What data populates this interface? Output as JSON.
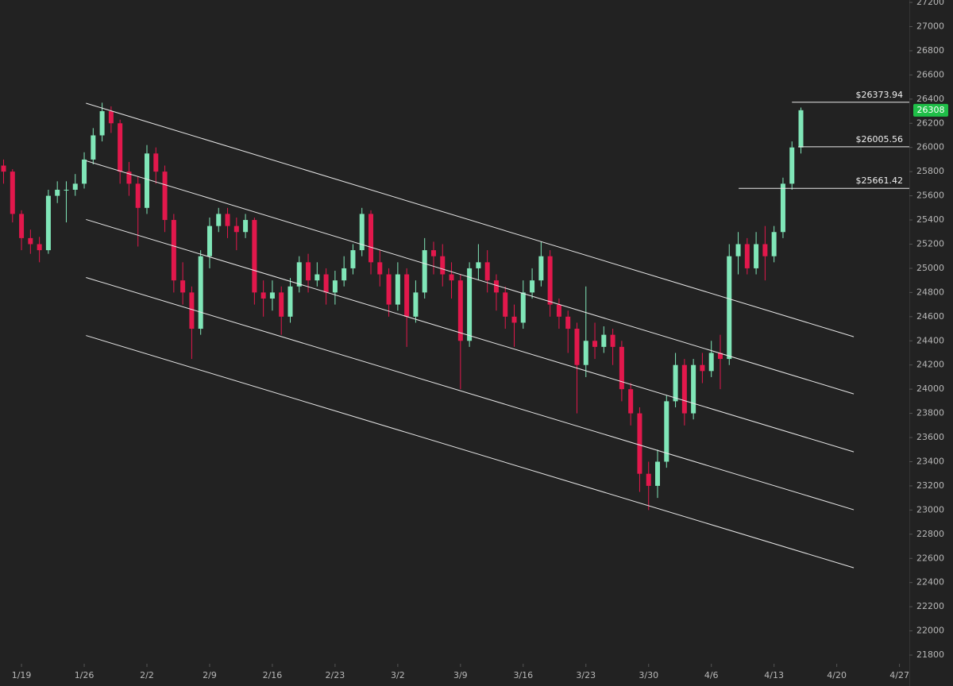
{
  "chart_data": {
    "type": "candlestick",
    "xlim": [
      16.6,
      118.1
    ],
    "ylim": [
      21728,
      27220
    ],
    "xticks": [
      {
        "value": 19,
        "label": "1/19"
      },
      {
        "value": 26,
        "label": "1/26"
      },
      {
        "value": 33,
        "label": "2/2"
      },
      {
        "value": 40,
        "label": "2/9"
      },
      {
        "value": 47,
        "label": "2/16"
      },
      {
        "value": 54,
        "label": "2/23"
      },
      {
        "value": 61,
        "label": "3/2"
      },
      {
        "value": 68,
        "label": "3/9"
      },
      {
        "value": 75,
        "label": "3/16"
      },
      {
        "value": 82,
        "label": "3/23"
      },
      {
        "value": 89,
        "label": "3/30"
      },
      {
        "value": 96,
        "label": "4/6"
      },
      {
        "value": 103,
        "label": "4/13"
      },
      {
        "value": 110,
        "label": "4/20"
      },
      {
        "value": 117,
        "label": "4/27"
      }
    ],
    "yticks": [
      21800,
      22000,
      22200,
      22400,
      22600,
      22800,
      23000,
      23200,
      23400,
      23600,
      23800,
      24000,
      24200,
      24400,
      24600,
      24800,
      25000,
      25200,
      25400,
      25600,
      25800,
      26000,
      26200,
      26400,
      26600,
      26800,
      27000,
      27200
    ],
    "up_color": "#80e6b8",
    "down_color": "#e2184c",
    "candles": {
      "x": [
        17,
        18,
        19,
        20,
        21,
        22,
        23,
        24,
        25,
        26,
        27,
        28,
        29,
        30,
        31,
        32,
        33,
        34,
        35,
        36,
        37,
        38,
        39,
        40,
        41,
        42,
        43,
        44,
        45,
        46,
        47,
        48,
        49,
        50,
        51,
        52,
        53,
        54,
        55,
        56,
        57,
        58,
        59,
        60,
        61,
        62,
        63,
        64,
        65,
        66,
        67,
        68,
        69,
        70,
        71,
        72,
        73,
        74,
        75,
        76,
        77,
        78,
        79,
        80,
        81,
        82,
        83,
        84,
        85,
        86,
        87,
        88,
        89,
        90,
        91,
        92,
        93,
        94,
        95,
        96,
        97,
        98,
        99,
        100,
        101,
        102,
        103,
        104,
        105,
        106
      ],
      "open": [
        25850,
        25800,
        25450,
        25250,
        25200,
        25150,
        25600,
        25650,
        25650,
        25700,
        25900,
        26100,
        26300,
        26200,
        25800,
        25700,
        25500,
        25950,
        25800,
        25400,
        24900,
        24800,
        24500,
        25100,
        25350,
        25450,
        25350,
        25300,
        25400,
        24800,
        24750,
        24800,
        24600,
        24850,
        25050,
        24900,
        24950,
        24800,
        24900,
        25000,
        25150,
        25450,
        25050,
        24950,
        24700,
        24950,
        24600,
        24800,
        25150,
        25100,
        24950,
        24900,
        24400,
        25000,
        25050,
        24900,
        24800,
        24600,
        24550,
        24800,
        24900,
        25100,
        24700,
        24600,
        24500,
        24200,
        24400,
        24350,
        24450,
        24350,
        24000,
        23800,
        23300,
        23200,
        23400,
        23900,
        24200,
        23800,
        24200,
        24150,
        24300,
        24250,
        25100,
        25200,
        25000,
        25200,
        25100,
        25300,
        25700,
        26000
      ],
      "high": [
        25900,
        25820,
        25480,
        25320,
        25260,
        25650,
        25720,
        25720,
        25780,
        25960,
        26160,
        26370,
        26340,
        26230,
        25880,
        25760,
        26020,
        26000,
        25850,
        25450,
        25050,
        24850,
        25150,
        25420,
        25500,
        25500,
        25420,
        25450,
        25420,
        24900,
        24900,
        24850,
        24920,
        25100,
        25120,
        25050,
        25000,
        24980,
        25100,
        25200,
        25500,
        25480,
        25150,
        25000,
        25050,
        25000,
        24900,
        25250,
        25220,
        25200,
        25050,
        24950,
        25050,
        25200,
        25150,
        24950,
        24850,
        24700,
        24900,
        25000,
        25220,
        25150,
        24750,
        24650,
        24550,
        24850,
        24550,
        24520,
        24500,
        24400,
        24050,
        23850,
        23400,
        23500,
        23950,
        24300,
        24250,
        24250,
        24300,
        24400,
        24450,
        25200,
        25300,
        25250,
        25300,
        25350,
        25350,
        25750,
        26050,
        26330
      ],
      "low": [
        25700,
        25380,
        25150,
        25120,
        25050,
        25120,
        25540,
        25380,
        25600,
        25660,
        25860,
        26050,
        26120,
        25700,
        25600,
        25180,
        25450,
        25700,
        25300,
        24800,
        24700,
        24250,
        24450,
        25000,
        25300,
        25250,
        25150,
        25250,
        24700,
        24600,
        24650,
        24450,
        24550,
        24800,
        24800,
        24850,
        24700,
        24700,
        24850,
        24950,
        25100,
        24950,
        24850,
        24600,
        24650,
        24350,
        24550,
        24750,
        24950,
        24850,
        24750,
        24000,
        24350,
        24900,
        24800,
        24650,
        24500,
        24350,
        24500,
        24750,
        24850,
        24600,
        24500,
        24300,
        23800,
        24100,
        24250,
        24300,
        24200,
        23900,
        23700,
        23150,
        23000,
        23100,
        23350,
        23850,
        23700,
        23750,
        24050,
        24100,
        24000,
        24200,
        24950,
        24950,
        24950,
        24900,
        25050,
        25250,
        25650,
        25950
      ],
      "close": [
        25800,
        25450,
        25250,
        25200,
        25150,
        25600,
        25650,
        25650,
        25700,
        25900,
        26100,
        26300,
        26200,
        25800,
        25700,
        25500,
        25950,
        25800,
        25400,
        24900,
        24800,
        24500,
        25100,
        25350,
        25450,
        25350,
        25300,
        25400,
        24800,
        24750,
        24800,
        24600,
        24850,
        25050,
        24900,
        24950,
        24800,
        24900,
        25000,
        25150,
        25450,
        25050,
        24950,
        24700,
        24950,
        24600,
        24800,
        25150,
        25100,
        24950,
        24900,
        24400,
        25000,
        25050,
        24900,
        24800,
        24600,
        24550,
        24800,
        24900,
        25100,
        24700,
        24600,
        24500,
        24200,
        24400,
        24350,
        24450,
        24350,
        24000,
        23800,
        23300,
        23200,
        23400,
        23900,
        24200,
        23800,
        24200,
        24150,
        24300,
        24250,
        25100,
        25200,
        25000,
        25200,
        25100,
        25300,
        25700,
        26000,
        26308
      ]
    },
    "channel": {
      "color": "#e8e8e8",
      "x": [
        26.2,
        111.9
      ],
      "lines": [
        [
          26366,
          24434
        ],
        [
          25890,
          23961
        ],
        [
          25404,
          23481
        ],
        [
          24924,
          23002
        ],
        [
          24444,
          22522
        ]
      ]
    },
    "levels": [
      {
        "value": 26373.94,
        "label": "$26373.94",
        "x_start": 105.0
      },
      {
        "value": 26005.56,
        "label": "$26005.56",
        "x_start": 105.7
      },
      {
        "value": 25661.42,
        "label": "$25661.42",
        "x_start": 99.05
      }
    ],
    "last_price": 26308,
    "last_price_color": "#1fbf48"
  }
}
